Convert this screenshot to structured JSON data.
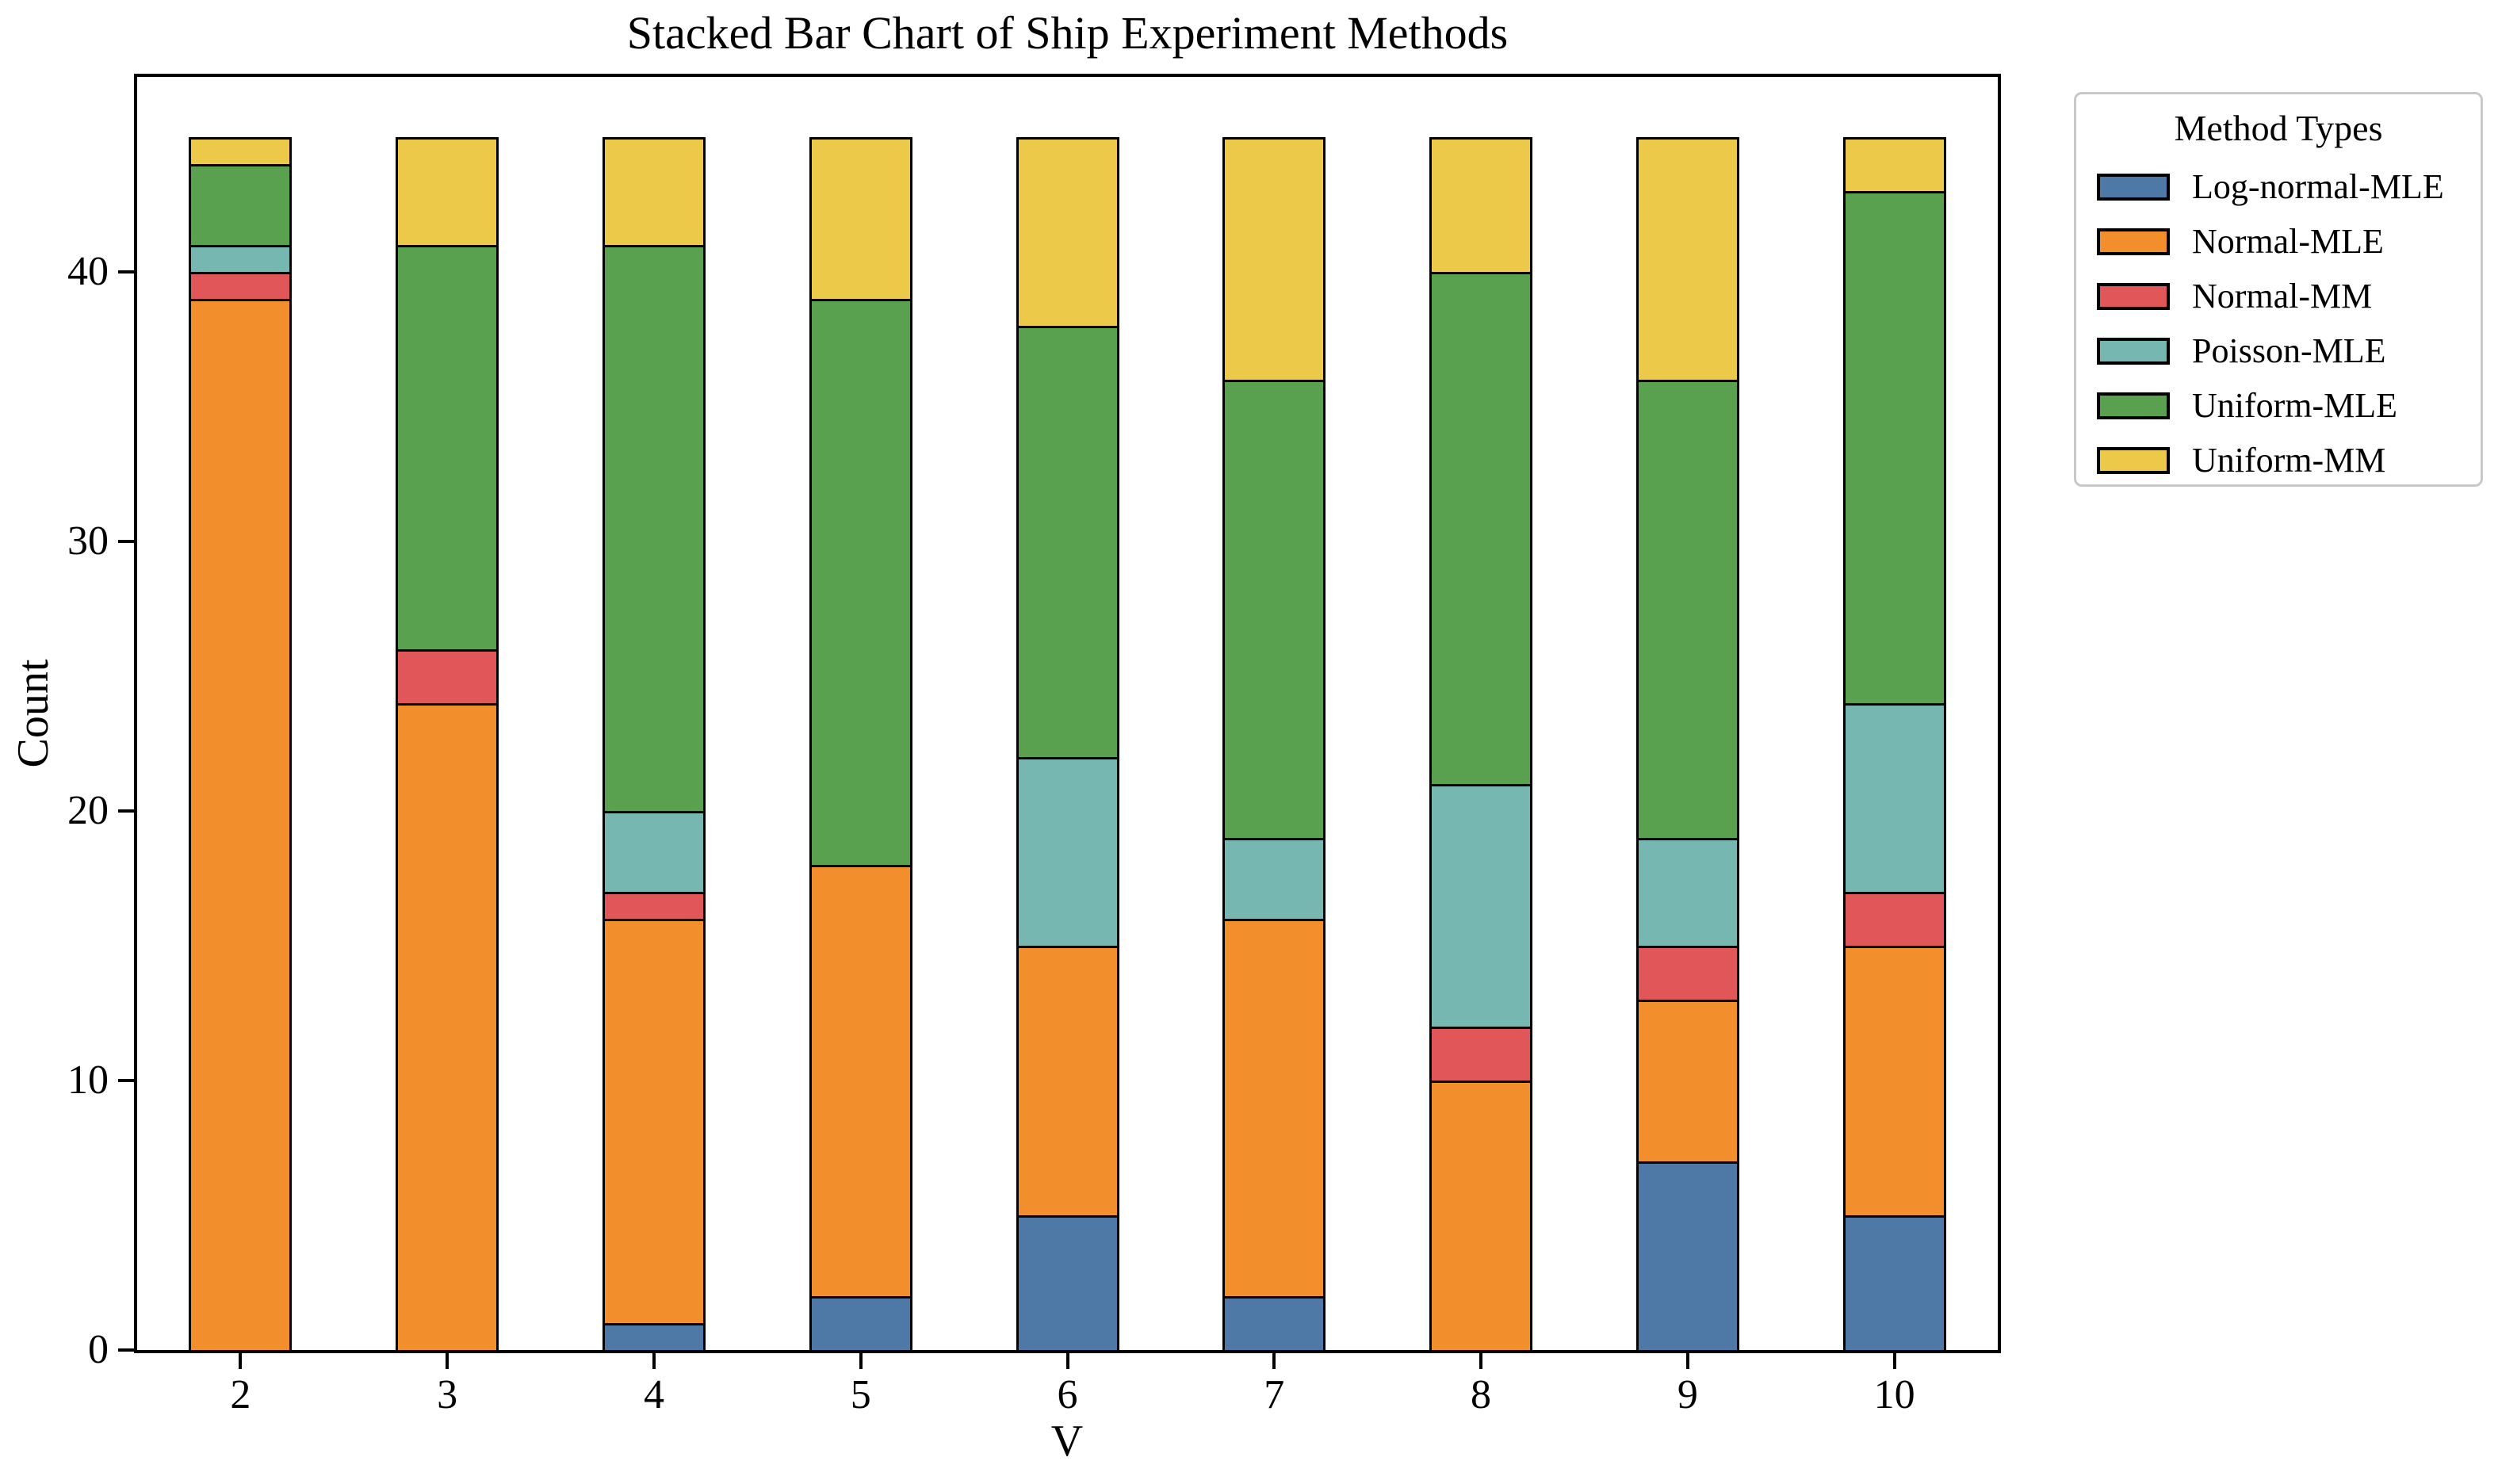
{
  "title": "Stacked Bar Chart of Ship Experiment Methods",
  "axes": {
    "x_label": "V",
    "y_label": "Count",
    "y_ticks": [
      "0",
      "10",
      "20",
      "30",
      "40"
    ],
    "y_tick_values": [
      0,
      10,
      20,
      30,
      40
    ]
  },
  "legend": {
    "title": "Method Types"
  },
  "colors": {
    "bar_edge": "#000000",
    "spine": "#000000",
    "legend_border": "#c8c8c8",
    "background": "#ffffff"
  },
  "chart_data": {
    "type": "bar",
    "stacked": true,
    "title": "Stacked Bar Chart of Ship Experiment Methods",
    "xlabel": "V",
    "ylabel": "Count",
    "ylim": [
      0,
      47.25
    ],
    "grid": false,
    "legend_position": "upper right, outside axes",
    "bar_total_per_category": 45,
    "categories": [
      "2",
      "3",
      "4",
      "5",
      "6",
      "7",
      "8",
      "9",
      "10"
    ],
    "series": [
      {
        "name": "Log-normal-MLE",
        "color": "#4E79A7",
        "values": [
          0,
          0,
          1,
          2,
          5,
          2,
          0,
          7,
          5
        ]
      },
      {
        "name": "Normal-MLE",
        "color": "#F28E2B",
        "values": [
          39,
          24,
          15,
          16,
          10,
          14,
          10,
          6,
          10
        ]
      },
      {
        "name": "Normal-MM",
        "color": "#E15759",
        "values": [
          1,
          2,
          1,
          0,
          0,
          0,
          2,
          2,
          2
        ]
      },
      {
        "name": "Poisson-MLE",
        "color": "#76B7B2",
        "values": [
          1,
          0,
          3,
          0,
          7,
          3,
          9,
          4,
          7
        ]
      },
      {
        "name": "Uniform-MLE",
        "color": "#59A14F",
        "values": [
          3,
          15,
          21,
          21,
          16,
          17,
          19,
          17,
          19
        ]
      },
      {
        "name": "Uniform-MM",
        "color": "#EDC949",
        "values": [
          1,
          4,
          4,
          6,
          7,
          9,
          5,
          9,
          2
        ]
      }
    ]
  }
}
